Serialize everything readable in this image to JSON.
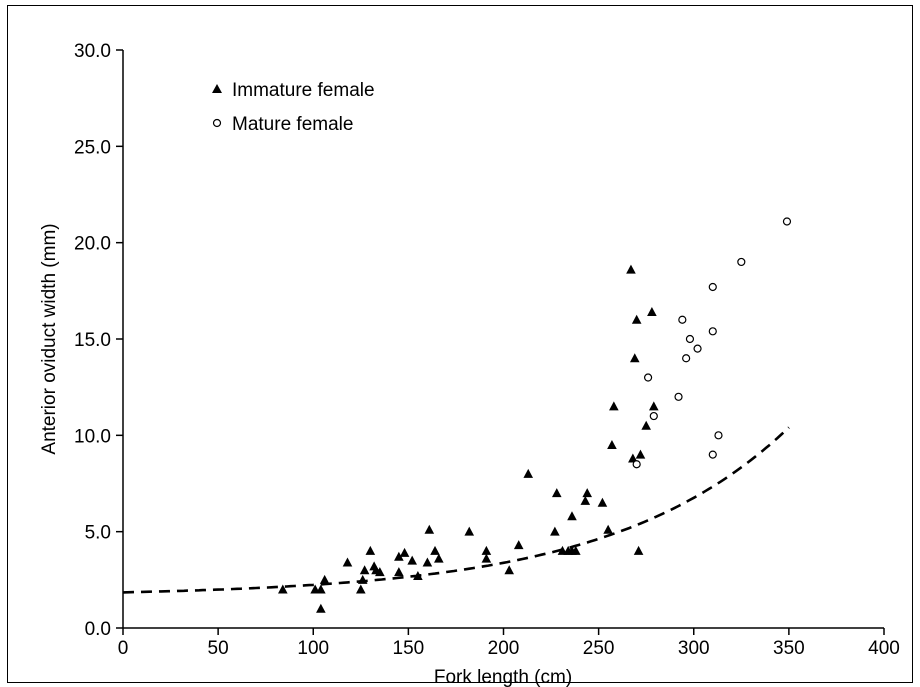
{
  "chart_data": {
    "type": "scatter",
    "xlabel": "Fork length (cm)",
    "ylabel": "Anterior oviduct width (mm)",
    "xlim": [
      0,
      400
    ],
    "ylim": [
      0,
      30
    ],
    "x_ticks": [
      "0",
      "50",
      "100",
      "150",
      "200",
      "250",
      "300",
      "350",
      "400"
    ],
    "y_ticks": [
      "0.0",
      "5.0",
      "10.0",
      "15.0",
      "20.0",
      "25.0",
      "30.0"
    ],
    "grid": false,
    "legend_position": "top-left",
    "series": [
      {
        "name": "Immature female",
        "marker": "filled-triangle",
        "points": [
          [
            84,
            2.0
          ],
          [
            101,
            2.0
          ],
          [
            104,
            2.0
          ],
          [
            104,
            1.0
          ],
          [
            106,
            2.5
          ],
          [
            118,
            3.4
          ],
          [
            125,
            2.0
          ],
          [
            126,
            2.5
          ],
          [
            127,
            3.0
          ],
          [
            130,
            4.0
          ],
          [
            132,
            3.2
          ],
          [
            133,
            3.0
          ],
          [
            135,
            2.9
          ],
          [
            145,
            2.9
          ],
          [
            145,
            3.7
          ],
          [
            148,
            3.9
          ],
          [
            152,
            3.5
          ],
          [
            155,
            2.7
          ],
          [
            160,
            3.4
          ],
          [
            161,
            5.1
          ],
          [
            164,
            4.0
          ],
          [
            166,
            3.6
          ],
          [
            182,
            5.0
          ],
          [
            191,
            4.0
          ],
          [
            191,
            3.6
          ],
          [
            203,
            3.0
          ],
          [
            208,
            4.3
          ],
          [
            213,
            8.0
          ],
          [
            227,
            5.0
          ],
          [
            228,
            7.0
          ],
          [
            231,
            4.0
          ],
          [
            234,
            4.0
          ],
          [
            236,
            4.0
          ],
          [
            236,
            5.8
          ],
          [
            238,
            4.0
          ],
          [
            243,
            6.6
          ],
          [
            244,
            7.0
          ],
          [
            252,
            6.5
          ],
          [
            255,
            5.1
          ],
          [
            257,
            9.5
          ],
          [
            258,
            11.5
          ],
          [
            267,
            18.6
          ],
          [
            268,
            8.8
          ],
          [
            269,
            14.0
          ],
          [
            270,
            16.0
          ],
          [
            271,
            4.0
          ],
          [
            272,
            9.0
          ],
          [
            275,
            10.5
          ],
          [
            278,
            16.4
          ],
          [
            279,
            11.5
          ]
        ]
      },
      {
        "name": "Mature female",
        "marker": "open-circle",
        "points": [
          [
            270,
            8.5
          ],
          [
            276,
            13.0
          ],
          [
            279,
            11.0
          ],
          [
            292,
            12.0
          ],
          [
            294,
            16.0
          ],
          [
            296,
            14.0
          ],
          [
            298,
            15.0
          ],
          [
            302,
            14.5
          ],
          [
            310,
            9.0
          ],
          [
            310,
            15.4
          ],
          [
            310,
            17.7
          ],
          [
            313,
            10.0
          ],
          [
            325,
            19.0
          ],
          [
            349,
            21.1
          ]
        ]
      },
      {
        "type": "fit-curve",
        "style": "dashed",
        "equation": "y = 0.2 * exp(0.0108 * x) + 1.65",
        "x_range": [
          0,
          350
        ]
      }
    ]
  }
}
